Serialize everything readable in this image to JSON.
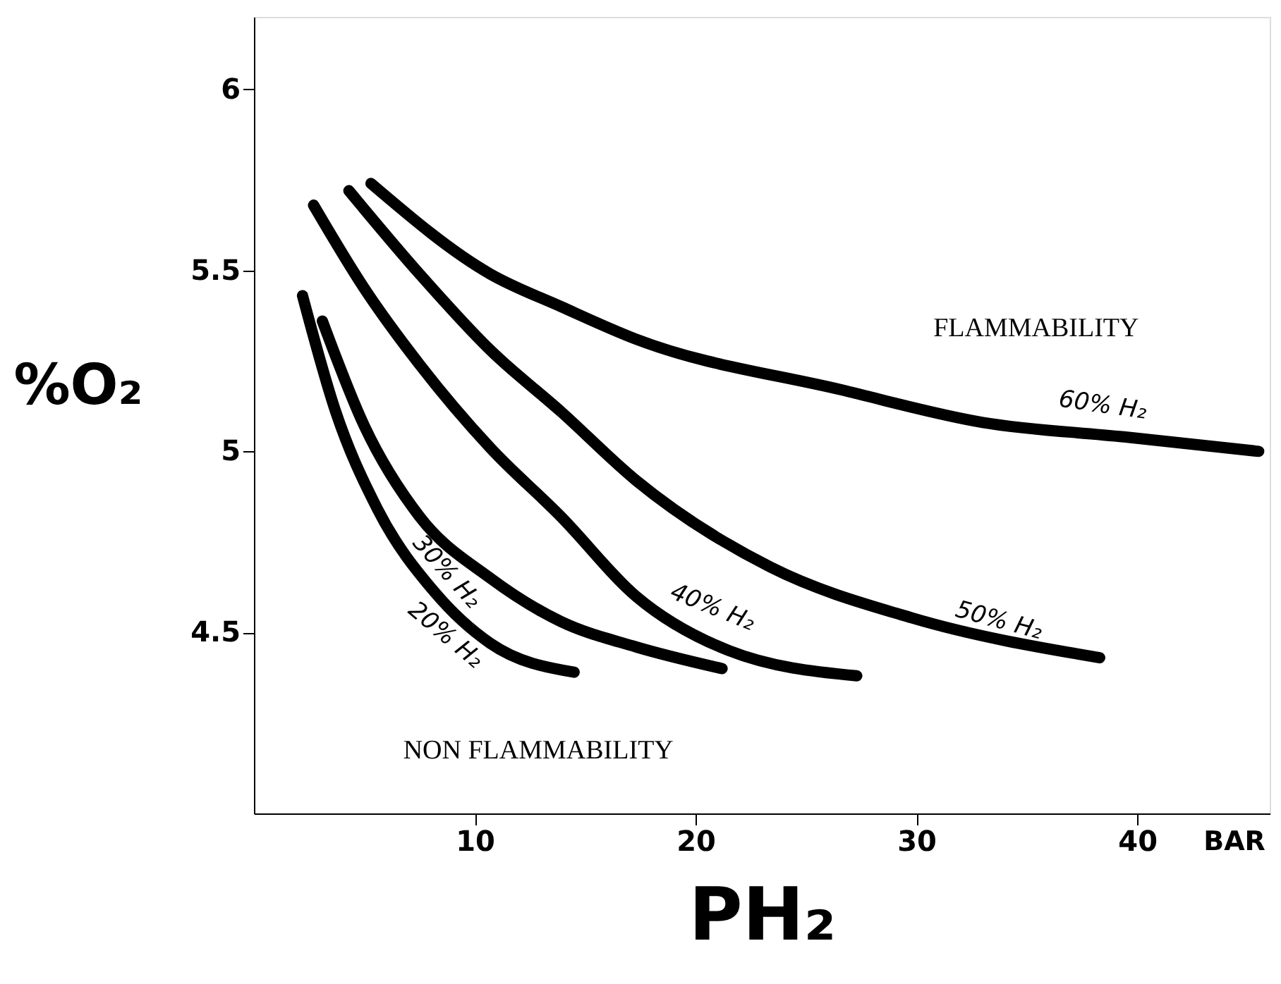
{
  "chart_data": {
    "type": "line",
    "xlabel": "PH₂",
    "ylabel": "%O₂",
    "xlim": [
      0,
      46
    ],
    "ylim": [
      4.0,
      6.2
    ],
    "xticks": [
      10,
      20,
      30,
      40
    ],
    "yticks": [
      4.5,
      5,
      5.5,
      6
    ],
    "grid": false,
    "marker": "none",
    "line_style": "solid",
    "series": [
      {
        "name": "20% H₂",
        "color": "#000000",
        "x": [
          2.2,
          3.7,
          5.6,
          8.2,
          10.7,
          14.5
        ],
        "values": [
          5.43,
          5.11,
          4.84,
          4.61,
          4.47,
          4.39
        ]
      },
      {
        "name": "30% H₂",
        "color": "#000000",
        "x": [
          3.1,
          5.0,
          7.5,
          10.7,
          13.9,
          17.3,
          21.2
        ],
        "values": [
          5.36,
          5.07,
          4.82,
          4.65,
          4.53,
          4.46,
          4.4
        ]
      },
      {
        "name": "40% H₂",
        "color": "#000000",
        "x": [
          2.7,
          5.0,
          7.5,
          10.7,
          13.9,
          17.3,
          21.5,
          27.3
        ],
        "values": [
          5.68,
          5.45,
          5.24,
          5.01,
          4.82,
          4.6,
          4.45,
          4.38
        ]
      },
      {
        "name": "50% H₂",
        "color": "#000000",
        "x": [
          4.3,
          7.5,
          10.7,
          13.9,
          17.3,
          23.4,
          29.8,
          38.3
        ],
        "values": [
          5.72,
          5.49,
          5.28,
          5.11,
          4.92,
          4.68,
          4.54,
          4.43
        ]
      },
      {
        "name": "60% H₂",
        "color": "#000000",
        "x": [
          5.3,
          10.7,
          13.9,
          17.3,
          26.6,
          33.0,
          39.4,
          45.5
        ],
        "values": [
          5.74,
          5.49,
          5.4,
          5.31,
          5.17,
          5.08,
          5.04,
          5.0
        ]
      }
    ],
    "annotations": [
      "FLAMMABILITY",
      "NON FLAMMABILITY",
      "BAR"
    ]
  }
}
